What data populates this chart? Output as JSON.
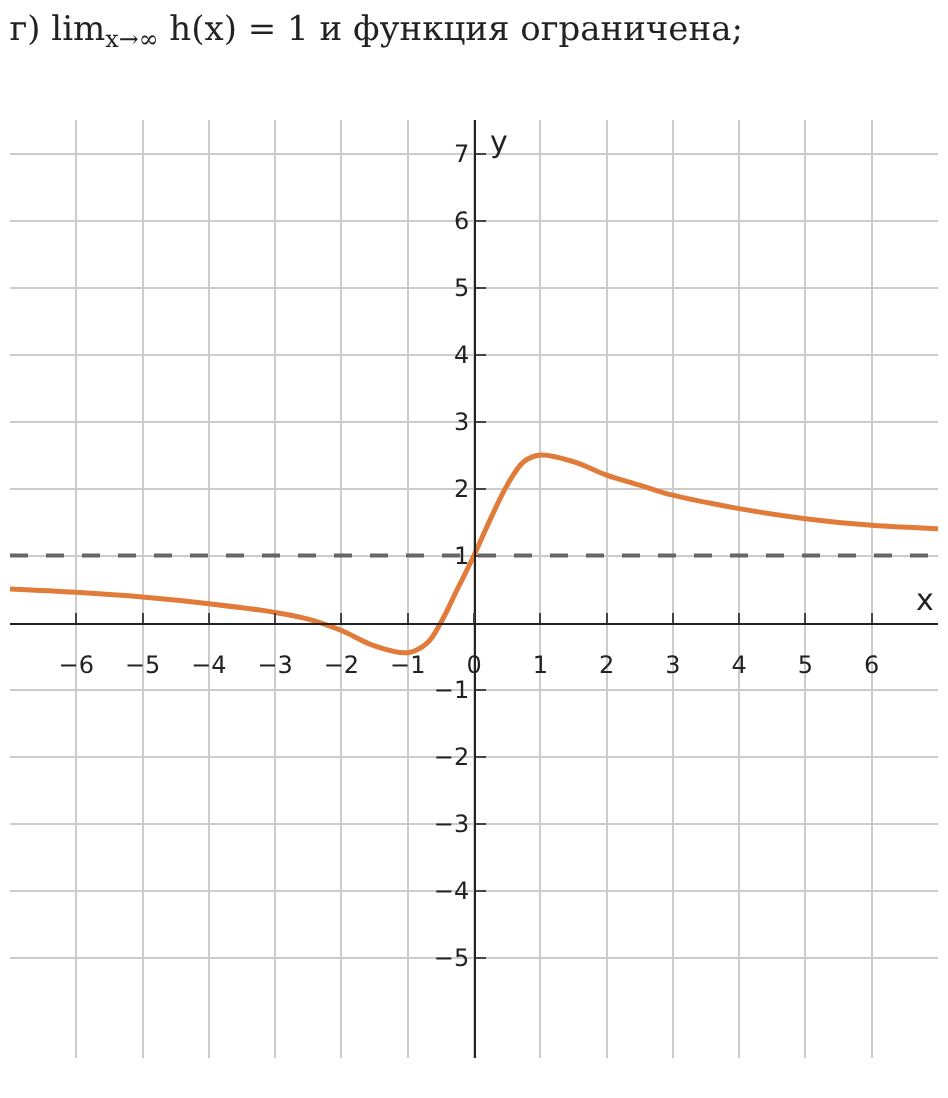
{
  "chart_data": {
    "type": "line",
    "title": "г) lim$_{x→∞}$ h(x) = 1 и функция ограничена;",
    "xlabel": "x",
    "ylabel": "y",
    "x": [
      -7,
      -6,
      -5,
      -4,
      -3,
      -2.5,
      -2,
      -1.5,
      -1,
      -0.7,
      -0.5,
      -0.25,
      0,
      0.25,
      0.5,
      0.75,
      1,
      1.5,
      2,
      2.5,
      3,
      4,
      5,
      6,
      7
    ],
    "series": [
      {
        "color": "#e07b39",
        "values": [
          0.5,
          0.45,
          0.38,
          0.28,
          0.15,
          0.05,
          -0.12,
          -0.35,
          -0.45,
          -0.3,
          0,
          0.5,
          1,
          1.55,
          2.05,
          2.4,
          2.5,
          2.4,
          2.2,
          2.05,
          1.9,
          1.7,
          1.55,
          1.45,
          1.4
        ]
      }
    ],
    "xlim": [
      -7,
      7
    ],
    "ylim": [
      -6.5,
      7.5
    ],
    "xticks": [
      -6,
      -5,
      -4,
      -3,
      -2,
      -1,
      0,
      1,
      2,
      3,
      4,
      5,
      6
    ],
    "yticks": [
      -5,
      -4,
      -3,
      -2,
      -1,
      1,
      2,
      3,
      4,
      5,
      6,
      7
    ],
    "ref_lines": [
      {
        "axis": "y",
        "value": 1,
        "color": "#666666",
        "line_style": "dashed"
      }
    ],
    "grid": true,
    "marker": "none",
    "line_style": "solid"
  }
}
